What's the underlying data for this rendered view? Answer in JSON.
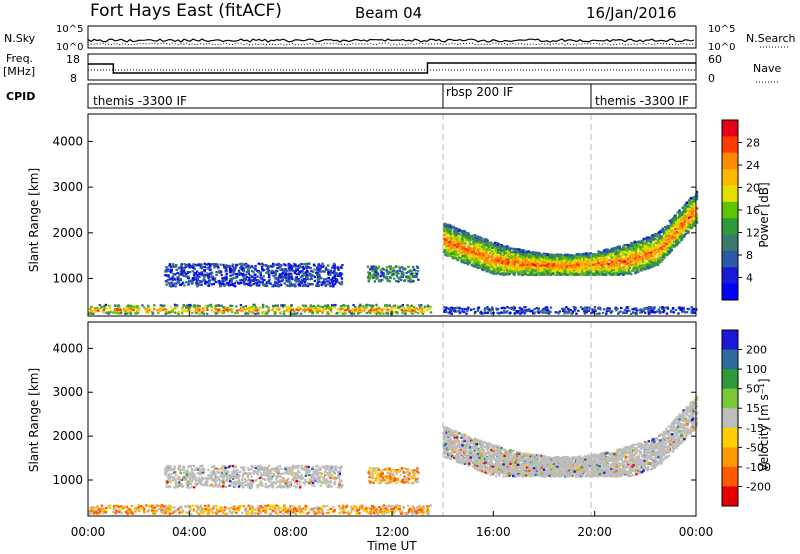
{
  "header": {
    "station": "Fort Hays East (fitACF)",
    "beam": "Beam 04",
    "date": "16/Jan/2016"
  },
  "noise_panel": {
    "left_label": "N.Sky",
    "right_label": "N.Search",
    "left_ticks": [
      "10^5",
      "10^0"
    ],
    "right_ticks": [
      "10^5",
      "10^0"
    ]
  },
  "freq_panel": {
    "left_label_line1": "Freq.",
    "left_label_line2": "[MHz]",
    "right_label": "Nave",
    "left_ticks": [
      "18",
      "8"
    ],
    "right_ticks": [
      "60",
      "0"
    ]
  },
  "cpid_panel": {
    "label": "CPID",
    "segments": [
      {
        "label": "themis -3300 IF",
        "start_hour": 0,
        "end_hour": 14
      },
      {
        "label": "rbsp 200 IF",
        "start_hour": 14,
        "end_hour": 20
      },
      {
        "label": "themis -3300 IF",
        "start_hour": 20,
        "end_hour": 24
      }
    ]
  },
  "x_axis": {
    "label": "Time UT",
    "ticks": [
      "00:00",
      "04:00",
      "08:00",
      "12:00",
      "16:00",
      "20:00",
      "00:00"
    ]
  },
  "power_colorbar": {
    "label": "Power [dB]",
    "ticks": [
      "28",
      "24",
      "20",
      "16",
      "12",
      "8",
      "4"
    ],
    "colors": [
      "#e6001a",
      "#ff3b00",
      "#ff8a00",
      "#ffb800",
      "#e3e000",
      "#5ec300",
      "#2e9b3a",
      "#3a7a6a",
      "#2a5aa8",
      "#1a1ad8",
      "#0000ff"
    ]
  },
  "velocity_colorbar": {
    "label": "Velocity [m s⁻¹]",
    "ticks": [
      "200",
      "100",
      "50",
      "15",
      "-15",
      "-50",
      "-100",
      "-200"
    ],
    "colors": [
      "#1a1ad8",
      "#2e6b9e",
      "#2e9b3a",
      "#7ac83a",
      "#bdbdbd",
      "#ffcf00",
      "#ff9a00",
      "#ff5a00",
      "#e60000"
    ]
  },
  "chart_data": [
    {
      "type": "heatmap",
      "title": "Power",
      "xlabel": "Time UT",
      "ylabel": "Slant Range [km]",
      "xlim": [
        0,
        24
      ],
      "ylim": [
        180,
        4600
      ],
      "yticks": [
        1000,
        2000,
        3000,
        4000
      ],
      "colorbar_label": "Power [dB]",
      "colorbar_ticks": [
        4,
        8,
        12,
        16,
        20,
        24,
        28
      ],
      "vertical_markers_hours": [
        14,
        20
      ],
      "echo_regions": [
        {
          "t_start": 0.0,
          "t_end": 13.5,
          "range_low": 250,
          "range_high": 450,
          "power": "high"
        },
        {
          "t_start": 3.0,
          "t_end": 10.0,
          "range_low": 850,
          "range_high": 1350,
          "power": "low-medium"
        },
        {
          "t_start": 11.0,
          "t_end": 13.0,
          "range_low": 950,
          "range_high": 1300,
          "power": "medium"
        },
        {
          "t_start": 14.0,
          "t_end": 24.0,
          "range_low": 1100,
          "range_high": 2800,
          "power": "high"
        },
        {
          "t_start": 14.0,
          "t_end": 24.0,
          "range_low": 250,
          "range_high": 400,
          "power": "low"
        }
      ]
    },
    {
      "type": "heatmap",
      "title": "Velocity",
      "xlabel": "Time UT",
      "ylabel": "Slant Range [km]",
      "xlim": [
        0,
        24
      ],
      "ylim": [
        180,
        4600
      ],
      "yticks": [
        1000,
        2000,
        3000,
        4000
      ],
      "colorbar_label": "Velocity [m s⁻¹]",
      "colorbar_ticks": [
        200,
        100,
        50,
        15,
        -15,
        -50,
        -100,
        -200
      ],
      "vertical_markers_hours": [
        14,
        20
      ],
      "echo_regions": [
        {
          "t_start": 0.0,
          "t_end": 13.5,
          "range_low": 250,
          "range_high": 450,
          "velocity": "ground scatter / negative"
        },
        {
          "t_start": 3.0,
          "t_end": 10.0,
          "range_low": 850,
          "range_high": 1350,
          "velocity": "ground scatter"
        },
        {
          "t_start": 11.0,
          "t_end": 13.0,
          "range_low": 950,
          "range_high": 1300,
          "velocity": "negative"
        },
        {
          "t_start": 14.0,
          "t_end": 24.0,
          "range_low": 1100,
          "range_high": 2800,
          "velocity": "ground scatter"
        }
      ]
    }
  ]
}
